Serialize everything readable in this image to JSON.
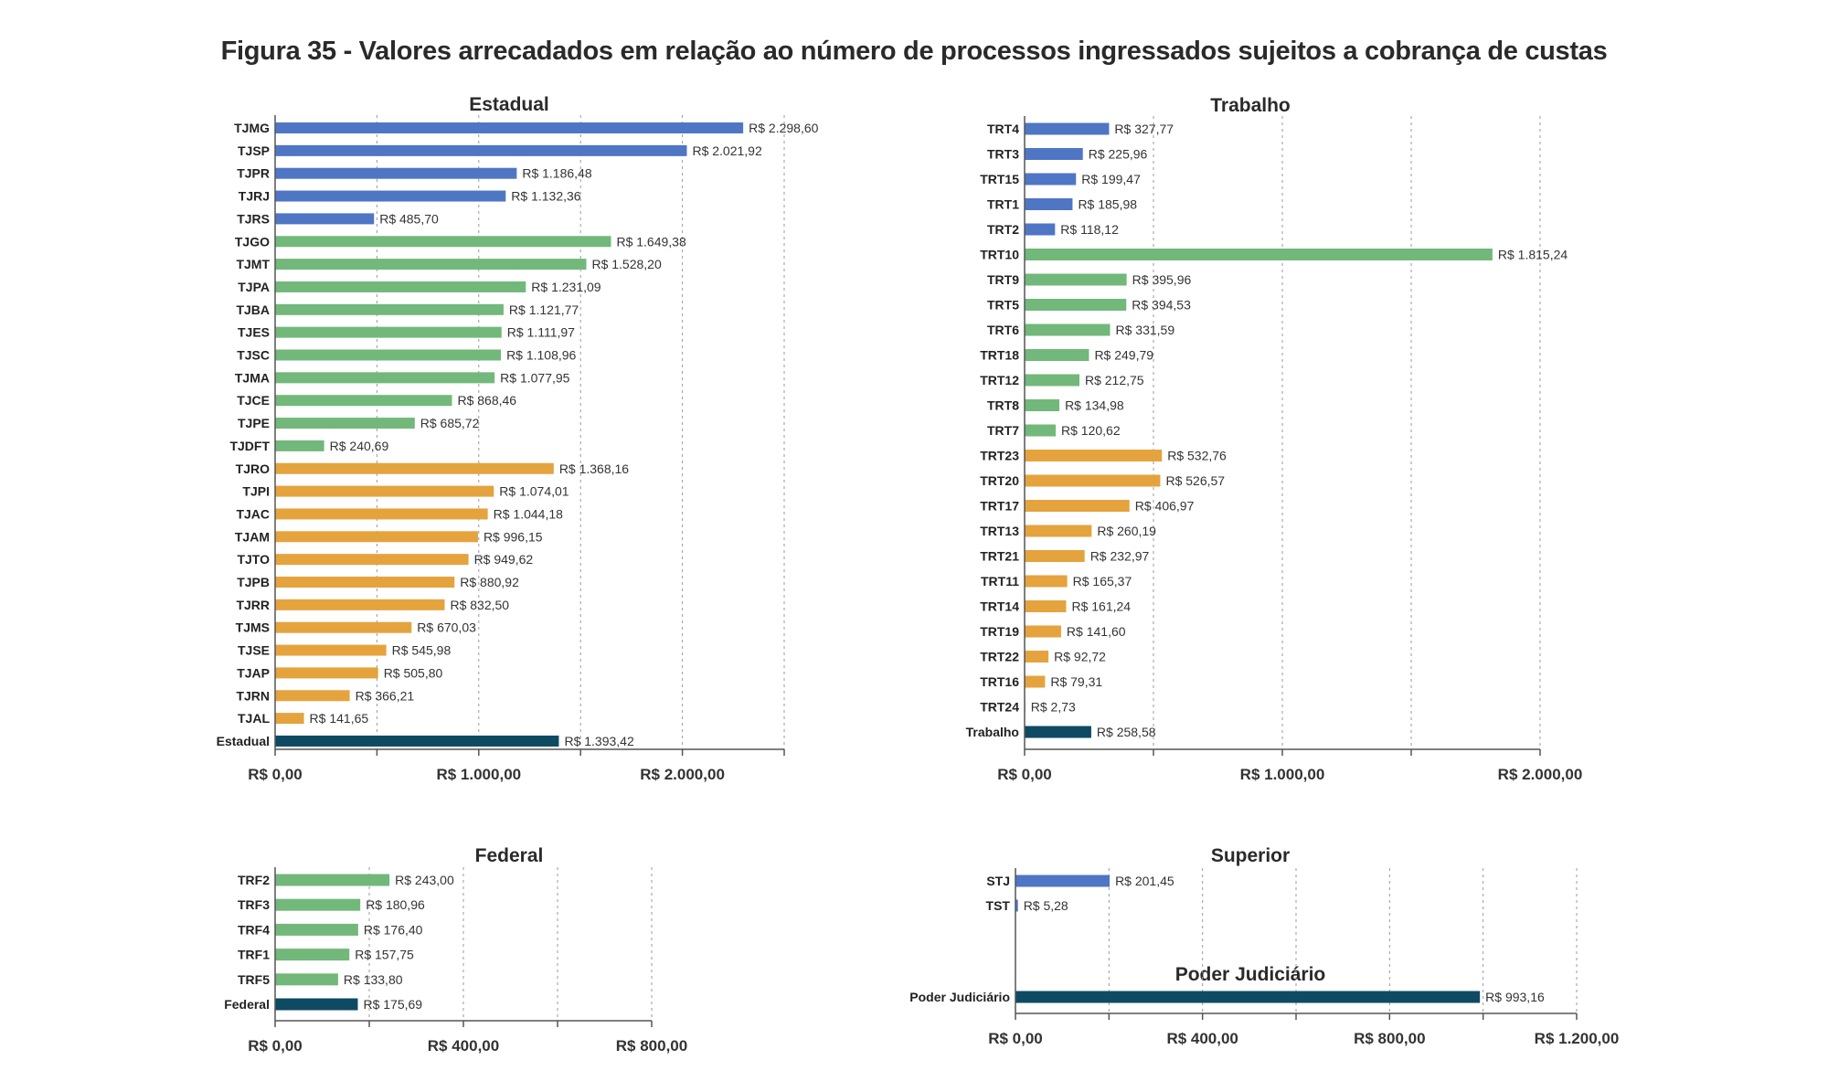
{
  "figure_title": "Figura 35 - Valores arrecadados em relação ao número de processos ingressados sujeitos a cobrança de custas",
  "colors": {
    "high": "#4f76c4",
    "mid": "#72b87a",
    "low": "#e5a33e",
    "total": "#0f4a63"
  },
  "chart_data": [
    {
      "type": "bar",
      "orientation": "horizontal",
      "title": "Estadual",
      "xlim": [
        0,
        2500
      ],
      "xticks": [
        0,
        1000,
        2000
      ],
      "xtick_labels": [
        "R$ 0,00",
        "R$ 1.000,00",
        "R$ 2.000,00"
      ],
      "grid_step": 500,
      "bars": [
        {
          "label": "TJMG",
          "value": 2298.6,
          "text": "R$ 2.298,60",
          "group": "high"
        },
        {
          "label": "TJSP",
          "value": 2021.92,
          "text": "R$ 2.021,92",
          "group": "high"
        },
        {
          "label": "TJPR",
          "value": 1186.48,
          "text": "R$ 1.186,48",
          "group": "high"
        },
        {
          "label": "TJRJ",
          "value": 1132.36,
          "text": "R$ 1.132,36",
          "group": "high"
        },
        {
          "label": "TJRS",
          "value": 485.7,
          "text": "R$ 485,70",
          "group": "high"
        },
        {
          "label": "TJGO",
          "value": 1649.38,
          "text": "R$ 1.649,38",
          "group": "mid"
        },
        {
          "label": "TJMT",
          "value": 1528.2,
          "text": "R$ 1.528,20",
          "group": "mid"
        },
        {
          "label": "TJPA",
          "value": 1231.09,
          "text": "R$ 1.231,09",
          "group": "mid"
        },
        {
          "label": "TJBA",
          "value": 1121.77,
          "text": "R$ 1.121,77",
          "group": "mid"
        },
        {
          "label": "TJES",
          "value": 1111.97,
          "text": "R$ 1.111,97",
          "group": "mid"
        },
        {
          "label": "TJSC",
          "value": 1108.96,
          "text": "R$ 1.108,96",
          "group": "mid"
        },
        {
          "label": "TJMA",
          "value": 1077.95,
          "text": "R$ 1.077,95",
          "group": "mid"
        },
        {
          "label": "TJCE",
          "value": 868.46,
          "text": "R$ 868,46",
          "group": "mid"
        },
        {
          "label": "TJPE",
          "value": 685.72,
          "text": "R$ 685,72",
          "group": "mid"
        },
        {
          "label": "TJDFT",
          "value": 240.69,
          "text": "R$ 240,69",
          "group": "mid"
        },
        {
          "label": "TJRO",
          "value": 1368.16,
          "text": "R$ 1.368,16",
          "group": "low"
        },
        {
          "label": "TJPI",
          "value": 1074.01,
          "text": "R$ 1.074,01",
          "group": "low"
        },
        {
          "label": "TJAC",
          "value": 1044.18,
          "text": "R$ 1.044,18",
          "group": "low"
        },
        {
          "label": "TJAM",
          "value": 996.15,
          "text": "R$ 996,15",
          "group": "low"
        },
        {
          "label": "TJTO",
          "value": 949.62,
          "text": "R$ 949,62",
          "group": "low"
        },
        {
          "label": "TJPB",
          "value": 880.92,
          "text": "R$ 880,92",
          "group": "low"
        },
        {
          "label": "TJRR",
          "value": 832.5,
          "text": "R$ 832,50",
          "group": "low"
        },
        {
          "label": "TJMS",
          "value": 670.03,
          "text": "R$ 670,03",
          "group": "low"
        },
        {
          "label": "TJSE",
          "value": 545.98,
          "text": "R$ 545,98",
          "group": "low"
        },
        {
          "label": "TJAP",
          "value": 505.8,
          "text": "R$ 505,80",
          "group": "low"
        },
        {
          "label": "TJRN",
          "value": 366.21,
          "text": "R$ 366,21",
          "group": "low"
        },
        {
          "label": "TJAL",
          "value": 141.65,
          "text": "R$ 141,65",
          "group": "low"
        },
        {
          "label": "Estadual",
          "value": 1393.42,
          "text": "R$ 1.393,42",
          "group": "total"
        }
      ]
    },
    {
      "type": "bar",
      "orientation": "horizontal",
      "title": "Trabalho",
      "xlim": [
        0,
        2000
      ],
      "xticks": [
        0,
        1000,
        2000
      ],
      "xtick_labels": [
        "R$ 0,00",
        "R$ 1.000,00",
        "R$ 2.000,00"
      ],
      "grid_step": 500,
      "bars": [
        {
          "label": "TRT4",
          "value": 327.77,
          "text": "R$ 327,77",
          "group": "high"
        },
        {
          "label": "TRT3",
          "value": 225.96,
          "text": "R$ 225,96",
          "group": "high"
        },
        {
          "label": "TRT15",
          "value": 199.47,
          "text": "R$ 199,47",
          "group": "high"
        },
        {
          "label": "TRT1",
          "value": 185.98,
          "text": "R$ 185,98",
          "group": "high"
        },
        {
          "label": "TRT2",
          "value": 118.12,
          "text": "R$ 118,12",
          "group": "high"
        },
        {
          "label": "TRT10",
          "value": 1815.24,
          "text": "R$ 1.815,24",
          "group": "mid"
        },
        {
          "label": "TRT9",
          "value": 395.96,
          "text": "R$ 395,96",
          "group": "mid"
        },
        {
          "label": "TRT5",
          "value": 394.53,
          "text": "R$ 394,53",
          "group": "mid"
        },
        {
          "label": "TRT6",
          "value": 331.59,
          "text": "R$ 331,59",
          "group": "mid"
        },
        {
          "label": "TRT18",
          "value": 249.79,
          "text": "R$ 249,79",
          "group": "mid"
        },
        {
          "label": "TRT12",
          "value": 212.75,
          "text": "R$ 212,75",
          "group": "mid"
        },
        {
          "label": "TRT8",
          "value": 134.98,
          "text": "R$ 134,98",
          "group": "mid"
        },
        {
          "label": "TRT7",
          "value": 120.62,
          "text": "R$ 120,62",
          "group": "mid"
        },
        {
          "label": "TRT23",
          "value": 532.76,
          "text": "R$ 532,76",
          "group": "low"
        },
        {
          "label": "TRT20",
          "value": 526.57,
          "text": "R$ 526,57",
          "group": "low"
        },
        {
          "label": "TRT17",
          "value": 406.97,
          "text": "R$ 406,97",
          "group": "low"
        },
        {
          "label": "TRT13",
          "value": 260.19,
          "text": "R$ 260,19",
          "group": "low"
        },
        {
          "label": "TRT21",
          "value": 232.97,
          "text": "R$ 232,97",
          "group": "low"
        },
        {
          "label": "TRT11",
          "value": 165.37,
          "text": "R$ 165,37",
          "group": "low"
        },
        {
          "label": "TRT14",
          "value": 161.24,
          "text": "R$ 161,24",
          "group": "low"
        },
        {
          "label": "TRT19",
          "value": 141.6,
          "text": "R$ 141,60",
          "group": "low"
        },
        {
          "label": "TRT22",
          "value": 92.72,
          "text": "R$ 92,72",
          "group": "low"
        },
        {
          "label": "TRT16",
          "value": 79.31,
          "text": "R$ 79,31",
          "group": "low"
        },
        {
          "label": "TRT24",
          "value": 2.73,
          "text": "R$ 2,73",
          "group": "low"
        },
        {
          "label": "Trabalho",
          "value": 258.58,
          "text": "R$ 258,58",
          "group": "total"
        }
      ]
    },
    {
      "type": "bar",
      "orientation": "horizontal",
      "title": "Federal",
      "xlim": [
        0,
        800
      ],
      "xticks": [
        0,
        400,
        800
      ],
      "xtick_labels": [
        "R$ 0,00",
        "R$ 400,00",
        "R$ 800,00"
      ],
      "grid_step": 200,
      "bars": [
        {
          "label": "TRF2",
          "value": 243.0,
          "text": "R$ 243,00",
          "group": "mid"
        },
        {
          "label": "TRF3",
          "value": 180.96,
          "text": "R$ 180,96",
          "group": "mid"
        },
        {
          "label": "TRF4",
          "value": 176.4,
          "text": "R$ 176,40",
          "group": "mid"
        },
        {
          "label": "TRF1",
          "value": 157.75,
          "text": "R$ 157,75",
          "group": "mid"
        },
        {
          "label": "TRF5",
          "value": 133.8,
          "text": "R$ 133,80",
          "group": "mid"
        },
        {
          "label": "Federal",
          "value": 175.69,
          "text": "R$ 175,69",
          "group": "total"
        }
      ]
    },
    {
      "type": "bar",
      "orientation": "horizontal",
      "title": "Superior",
      "subtitle": "Poder Judiciário",
      "xlim": [
        0,
        1200
      ],
      "xticks": [
        0,
        400,
        800,
        1200
      ],
      "xtick_labels": [
        "R$ 0,00",
        "R$ 400,00",
        "R$ 800,00",
        "R$ 1.200,00"
      ],
      "grid_step": 200,
      "bars": [
        {
          "label": "STJ",
          "value": 201.45,
          "text": "R$ 201,45",
          "group": "high"
        },
        {
          "label": "TST",
          "value": 5.28,
          "text": "R$ 5,28",
          "group": "high"
        },
        {
          "label": "Poder Judiciário",
          "value": 993.16,
          "text": "R$ 993,16",
          "group": "total"
        }
      ]
    }
  ]
}
